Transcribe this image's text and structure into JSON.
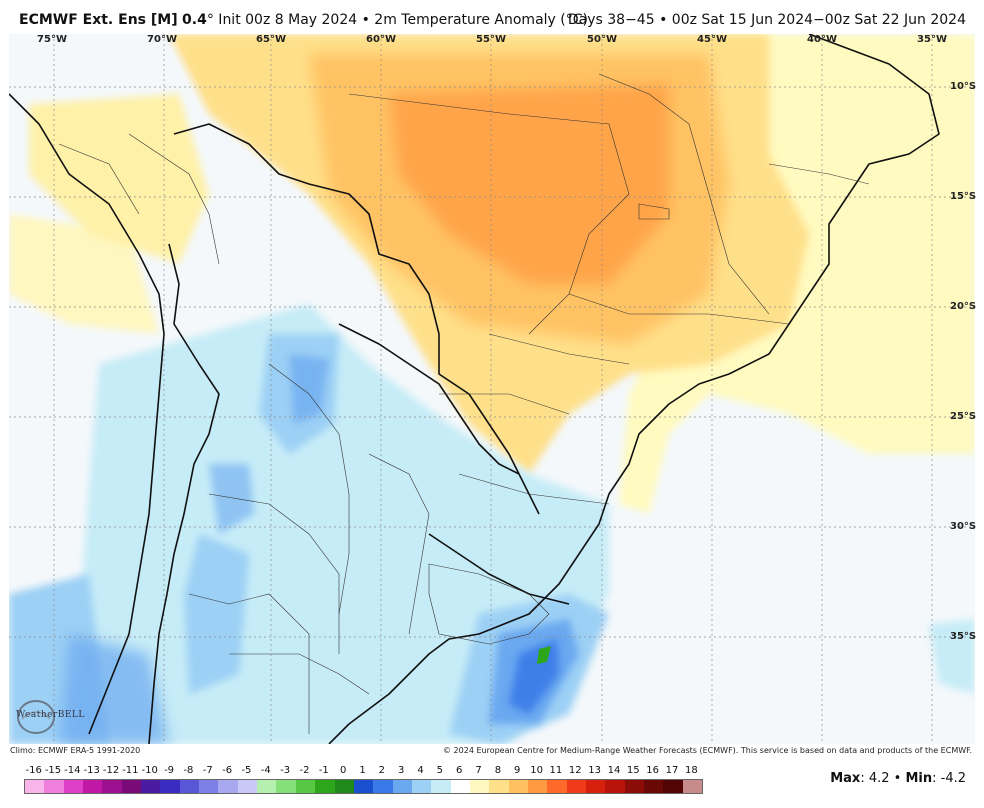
{
  "title": {
    "model": "ECMWF Ext. Ens [M]",
    "res": "0.4",
    "deg": "°",
    "init": " Init 00z 8 May 2024 • 2m Temperature Anomaly (°C)",
    "valid": "Days 38−45 • 00z Sat 15 Jun 2024−00z Sat 22 Jun 2024"
  },
  "lon_labels": [
    "75°W",
    "70°W",
    "65°W",
    "60°W",
    "55°W",
    "50°W",
    "45°W",
    "40°W",
    "35°W"
  ],
  "lat_labels": [
    "10°S",
    "15°S",
    "20°S",
    "25°S",
    "30°S",
    "35°S"
  ],
  "logo": "WeatherBELL",
  "credits": {
    "left": "Climo: ECMWF ERA-5 1991-2020",
    "right": "© 2024 European Centre for Medium-Range Weather Forecasts (ECMWF). This service is based on data and products of the ECMWF."
  },
  "colorbar": {
    "labels": [
      "-16",
      "-15",
      "-14",
      "-13",
      "-12",
      "-11",
      "-10",
      "-9",
      "-8",
      "-7",
      "-6",
      "-5",
      "-4",
      "-3",
      "-2",
      "-1",
      "0",
      "1",
      "2",
      "3",
      "4",
      "5",
      "6",
      "7",
      "8",
      "9",
      "10",
      "11",
      "12",
      "13",
      "14",
      "15",
      "16",
      "17",
      "18"
    ],
    "colors": [
      "#f7b5ea",
      "#ef7fdd",
      "#e03fc8",
      "#c218a8",
      "#9c0f8e",
      "#7a0a78",
      "#4a1aa0",
      "#3a2cc0",
      "#5a56d8",
      "#7f7fe8",
      "#a7a8f0",
      "#c9c9f7",
      "#b5f0b0",
      "#86e07a",
      "#56c844",
      "#2ea61c",
      "#1f8a1a",
      "#1a4fd0",
      "#3a7ae8",
      "#6aa8f0",
      "#9cd0f5",
      "#c6ecf7",
      "#ffffff",
      "#fff7c0",
      "#ffe08a",
      "#ffc060",
      "#ff9a40",
      "#ff6a2a",
      "#f03a1a",
      "#d8200e",
      "#b8140a",
      "#8c0c08",
      "#6a0806",
      "#520405",
      "#c78b8b"
    ]
  },
  "maxmin": {
    "max_label": "Max",
    "max": ": 4.2 • ",
    "min_label": "Min",
    "min": ": -4.2"
  }
}
